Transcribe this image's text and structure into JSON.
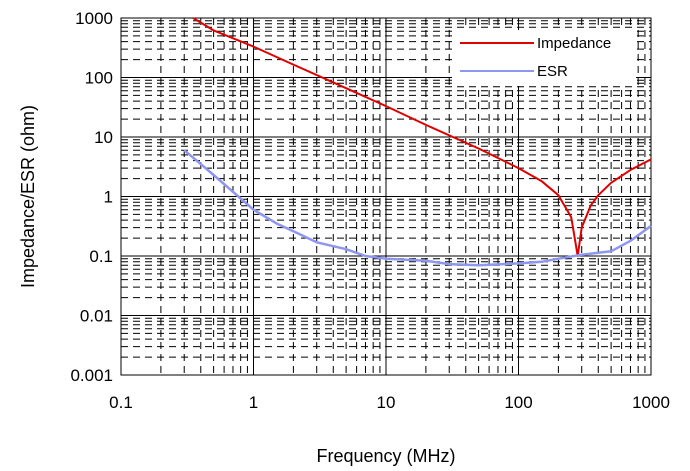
{
  "chart_data": {
    "type": "line",
    "title": "",
    "xlabel": "Frequency (MHz)",
    "ylabel": "Impedance/ESR (ohm)",
    "x_scale": "log",
    "y_scale": "log",
    "xlim": [
      0.1,
      1000
    ],
    "ylim": [
      0.001,
      1000
    ],
    "x_ticks": [
      "0.1",
      "1",
      "10",
      "100",
      "1000"
    ],
    "y_ticks": [
      "0.001",
      "0.01",
      "0.1",
      "1",
      "10",
      "100",
      "1000"
    ],
    "grid": "major solid, minor dashed",
    "legend_position": "top-right",
    "series": [
      {
        "name": "Impedance",
        "color": "#e00000",
        "x": [
          0.35,
          0.5,
          1,
          2,
          5,
          10,
          20,
          50,
          100,
          150,
          200,
          250,
          280,
          300,
          350,
          400,
          500,
          700,
          1000
        ],
        "y": [
          1000,
          620,
          330,
          165,
          66,
          33,
          16,
          6.4,
          3.0,
          1.8,
          1.05,
          0.45,
          0.1,
          0.3,
          0.7,
          1.05,
          1.7,
          2.8,
          4.2
        ]
      },
      {
        "name": "ESR",
        "color": "#8e96f0",
        "x": [
          0.3,
          0.4,
          0.5,
          0.7,
          1,
          1.5,
          2,
          3,
          5,
          7,
          10,
          20,
          30,
          50,
          100,
          150,
          200,
          300,
          500,
          700,
          1000
        ],
        "y": [
          6.0,
          3.5,
          2.3,
          1.2,
          0.6,
          0.35,
          0.26,
          0.17,
          0.13,
          0.1,
          0.09,
          0.083,
          0.073,
          0.07,
          0.075,
          0.08,
          0.09,
          0.105,
          0.12,
          0.18,
          0.32
        ]
      }
    ]
  }
}
